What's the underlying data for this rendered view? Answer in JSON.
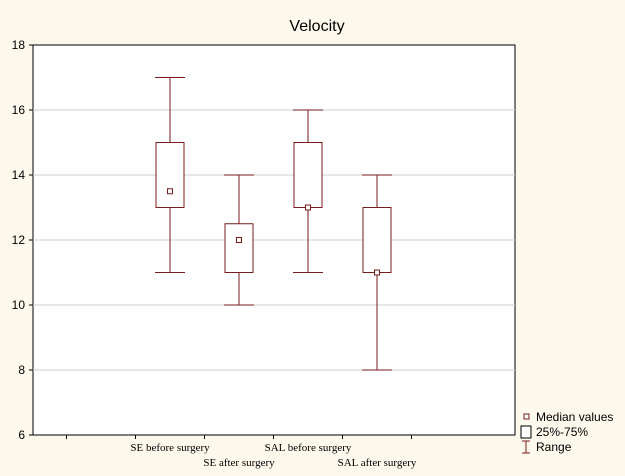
{
  "chart_data": {
    "type": "box",
    "title": "Velocity",
    "xlabel": "",
    "ylabel": "",
    "ylim": [
      6,
      18
    ],
    "yticks": [
      6,
      8,
      10,
      12,
      14,
      16,
      18
    ],
    "grid": true,
    "legend_position": "bottom-right",
    "categories": [
      "SE before surgery",
      "SE after surgery",
      "SAL before surgery",
      "SAL after surgery"
    ],
    "boxes": [
      {
        "category": "SE before surgery",
        "min": 11,
        "q1": 13,
        "median": 13.5,
        "q3": 15,
        "max": 17
      },
      {
        "category": "SE after surgery",
        "min": 10,
        "q1": 11,
        "median": 12,
        "q3": 12.5,
        "max": 14
      },
      {
        "category": "SAL before surgery",
        "min": 11,
        "q1": 13,
        "median": 13,
        "q3": 15,
        "max": 16
      },
      {
        "category": "SAL after surgery",
        "min": 8,
        "q1": 11,
        "median": 11,
        "q3": 13,
        "max": 14
      }
    ],
    "legend": [
      {
        "key": "median",
        "label": "Median values"
      },
      {
        "key": "box",
        "label": "25%-75%"
      },
      {
        "key": "range",
        "label": "Range"
      }
    ],
    "colors": {
      "box": "#7b1a1a",
      "background": "#fdf9ec",
      "plot_area": "#ffffff",
      "grid": "#cfcfcf",
      "axis": "#000000"
    }
  }
}
